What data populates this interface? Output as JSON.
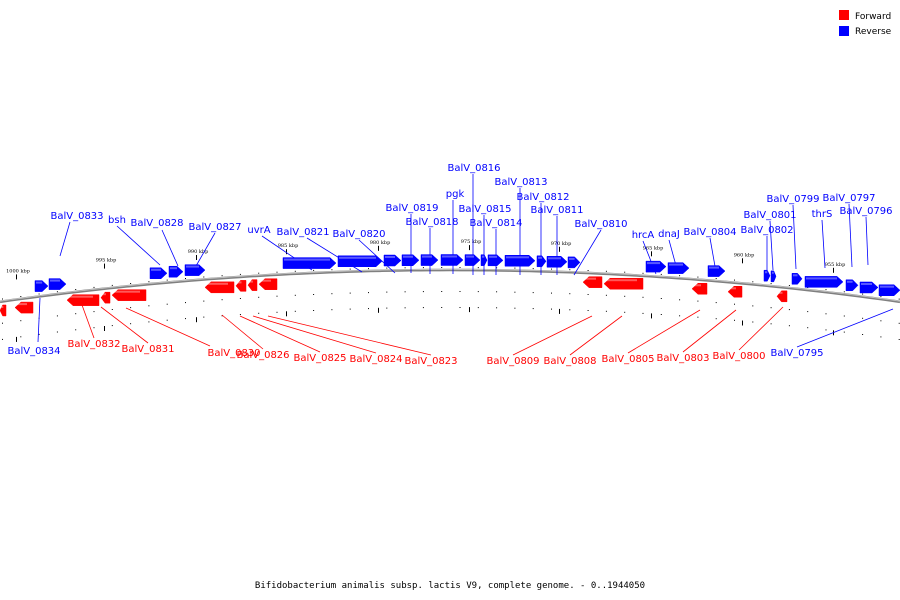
{
  "caption": "Bifidobacterium animalis subsp. lactis V9, complete genome. - 0..1944050",
  "legend": [
    {
      "label": "Forward",
      "color": "#ff0000"
    },
    {
      "label": "Reverse",
      "color": "#0000ff"
    }
  ],
  "colors": {
    "forward": "#ff0000",
    "reverse": "#0000ff",
    "backbone": "#808080"
  },
  "scale_labels": [
    "1000 kbp",
    "995 kbp",
    "990 kbp",
    "985 kbp",
    "980 kbp",
    "975 kbp",
    "970 kbp",
    "965 kbp",
    "960 kbp",
    "955 kbp"
  ],
  "forward_labels": [
    "BalV_0832",
    "BalV_0831",
    "BalV_0830",
    "BalV_0826",
    "BalV_0825",
    "BalV_0824",
    "BalV_0823",
    "BalV_0809",
    "BalV_0808",
    "BalV_0805",
    "BalV_0803",
    "BalV_0800"
  ],
  "reverse_labels": [
    "BalV_0834",
    "BalV_0833",
    "bsh",
    "BalV_0828",
    "BalV_0827",
    "uvrA",
    "BalV_0821",
    "BalV_0820",
    "BalV_0819",
    "BalV_0818",
    "pgk",
    "BalV_0816",
    "BalV_0815",
    "BalV_0814",
    "BalV_0813",
    "BalV_0812",
    "BalV_0811",
    "BalV_0810",
    "hrcA",
    "dnaJ",
    "BalV_0804",
    "BalV_0802",
    "BalV_0801",
    "BalV_0799",
    "thrS",
    "BalV_0797",
    "BalV_0796",
    "BalV_0795"
  ]
}
